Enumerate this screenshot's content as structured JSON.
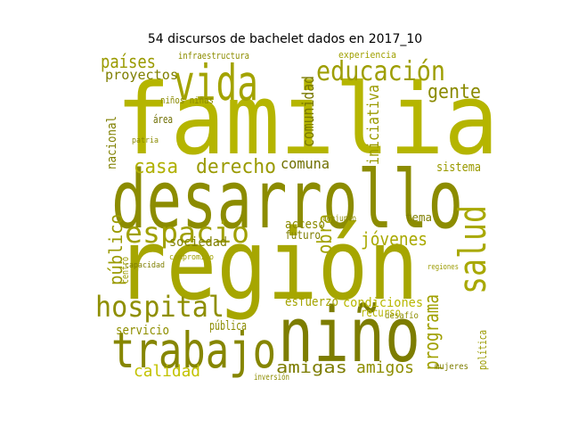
{
  "title": "54 discursos de bachelet dados en 2017_10",
  "words": [
    {
      "text": "familia",
      "color": "#b5b500"
    },
    {
      "text": "desarrollo",
      "color": "#8c8c00"
    },
    {
      "text": "región",
      "color": "#a6a600"
    },
    {
      "text": "niño",
      "color": "#7d7d00"
    },
    {
      "text": "trabajo",
      "color": "#868600"
    },
    {
      "text": "vida",
      "color": "#a3a300"
    },
    {
      "text": "educación",
      "color": "#9e9e00"
    },
    {
      "text": "hospital",
      "color": "#8f8f00"
    },
    {
      "text": "espacio",
      "color": "#a0a000"
    },
    {
      "text": "salud",
      "color": "#a8a800"
    },
    {
      "text": "gente",
      "color": "#8a8a00"
    },
    {
      "text": "países",
      "color": "#9a9a00"
    },
    {
      "text": "proyectos",
      "color": "#7f7f00"
    },
    {
      "text": "casa",
      "color": "#b0b000"
    },
    {
      "text": "derecho",
      "color": "#9a9a00"
    },
    {
      "text": "comuna",
      "color": "#6f6f00"
    },
    {
      "text": "comunidad",
      "color": "#7a7a00"
    },
    {
      "text": "iniciativa",
      "color": "#9b9b00"
    },
    {
      "text": "jóvenes",
      "color": "#a9a900"
    },
    {
      "text": "obra",
      "color": "#a2a200"
    },
    {
      "text": "programa",
      "color": "#a0a000"
    },
    {
      "text": "amigas",
      "color": "#7c7c00"
    },
    {
      "text": "amigos",
      "color": "#8e8e00"
    },
    {
      "text": "calidad",
      "color": "#c2c200"
    },
    {
      "text": "público",
      "color": "#9a9a00"
    },
    {
      "text": "sociedad",
      "color": "#808000"
    },
    {
      "text": "esfuerzo",
      "color": "#a4a400"
    },
    {
      "text": "condiciones",
      "color": "#b8b800"
    },
    {
      "text": "pública",
      "color": "#8b8b00"
    },
    {
      "text": "servicio",
      "color": "#8f8f00"
    },
    {
      "text": "sistema",
      "color": "#9a9a00"
    },
    {
      "text": "tema",
      "color": "#7f7f00"
    },
    {
      "text": "acceso",
      "color": "#8a8a00"
    },
    {
      "text": "futuro",
      "color": "#7e7e00"
    },
    {
      "text": "nacional",
      "color": "#808000"
    },
    {
      "text": "infraestructura",
      "color": "#8d8d00"
    },
    {
      "text": "experiencia",
      "color": "#a0a000"
    },
    {
      "text": "recurso",
      "color": "#b5b500"
    },
    {
      "text": "política",
      "color": "#9a9a00"
    },
    {
      "text": "mujeres",
      "color": "#7e7e00"
    },
    {
      "text": "inversión",
      "color": "#8d8d00"
    },
    {
      "text": "desafío",
      "color": "#8d8d00"
    },
    {
      "text": "conjunto",
      "color": "#8a8a00"
    },
    {
      "text": "área",
      "color": "#6e6e00"
    },
    {
      "text": "niños niñas",
      "color": "#8a8a00"
    },
    {
      "text": "regiones",
      "color": "#9b9b00"
    },
    {
      "text": "compromiso",
      "color": "#a0a000"
    },
    {
      "text": "capacidad",
      "color": "#7f7f00"
    },
    {
      "text": "centro",
      "color": "#9a9a00"
    },
    {
      "text": "patria",
      "color": "#8a8a00"
    }
  ]
}
